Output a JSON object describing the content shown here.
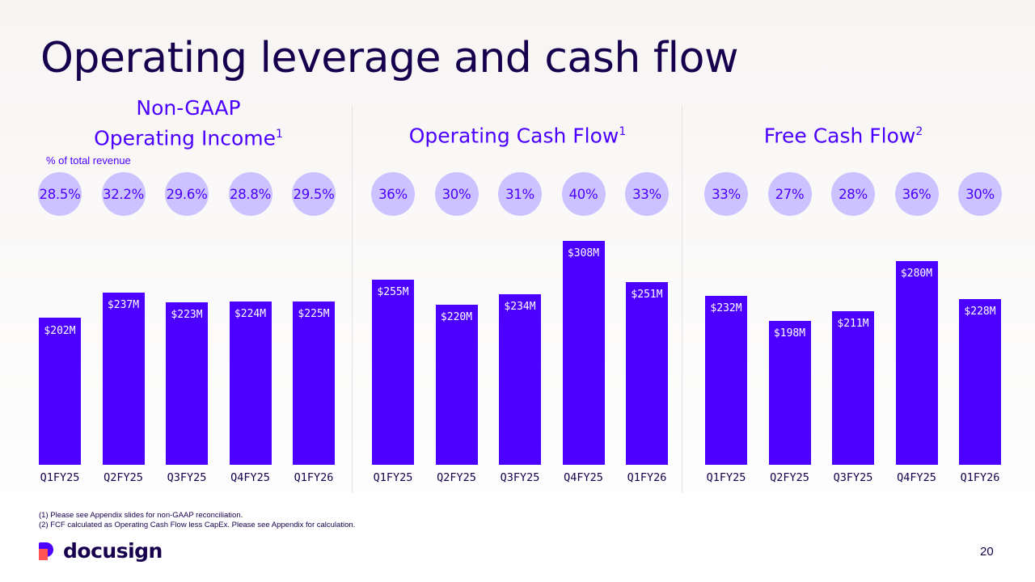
{
  "title": "Operating leverage and cash flow",
  "subnote": "% of total revenue",
  "footnotes": [
    "(1) Please see Appendix slides for non-GAAP reconciliation.",
    "(2) FCF calculated as Operating Cash Flow less CapEx. Please see Appendix for calculation."
  ],
  "logo_text": "docusign",
  "page_number": "20",
  "colors": {
    "bar": "#4c00ff",
    "bubble": "#cbc2ff",
    "title": "#16004d",
    "accent": "#4c00ff"
  },
  "chart_data": [
    {
      "type": "bar",
      "title_lines": [
        "Non-GAAP",
        "Operating Income"
      ],
      "title_sup": "1",
      "categories": [
        "Q1FY25",
        "Q2FY25",
        "Q3FY25",
        "Q4FY25",
        "Q1FY26"
      ],
      "values": [
        202,
        237,
        223,
        224,
        225
      ],
      "value_labels": [
        "$202M",
        "$237M",
        "$223M",
        "$224M",
        "$225M"
      ],
      "percents": [
        "28.5%",
        "32.2%",
        "29.6%",
        "28.8%",
        "29.5%"
      ],
      "ylim": [
        0,
        300
      ]
    },
    {
      "type": "bar",
      "title_lines": [
        "Operating Cash Flow"
      ],
      "title_sup": "1",
      "categories": [
        "Q1FY25",
        "Q2FY25",
        "Q3FY25",
        "Q4FY25",
        "Q1FY26"
      ],
      "values": [
        255,
        220,
        234,
        308,
        251
      ],
      "value_labels": [
        "$255M",
        "$220M",
        "$234M",
        "$308M",
        "$251M"
      ],
      "percents": [
        "36%",
        "30%",
        "31%",
        "40%",
        "33%"
      ],
      "ylim": [
        0,
        300
      ]
    },
    {
      "type": "bar",
      "title_lines": [
        "Free Cash Flow"
      ],
      "title_sup": "2",
      "categories": [
        "Q1FY25",
        "Q2FY25",
        "Q3FY25",
        "Q4FY25",
        "Q1FY26"
      ],
      "values": [
        232,
        198,
        211,
        280,
        228
      ],
      "value_labels": [
        "$232M",
        "$198M",
        "$211M",
        "$280M",
        "$228M"
      ],
      "percents": [
        "33%",
        "27%",
        "28%",
        "36%",
        "30%"
      ],
      "ylim": [
        0,
        300
      ]
    }
  ]
}
